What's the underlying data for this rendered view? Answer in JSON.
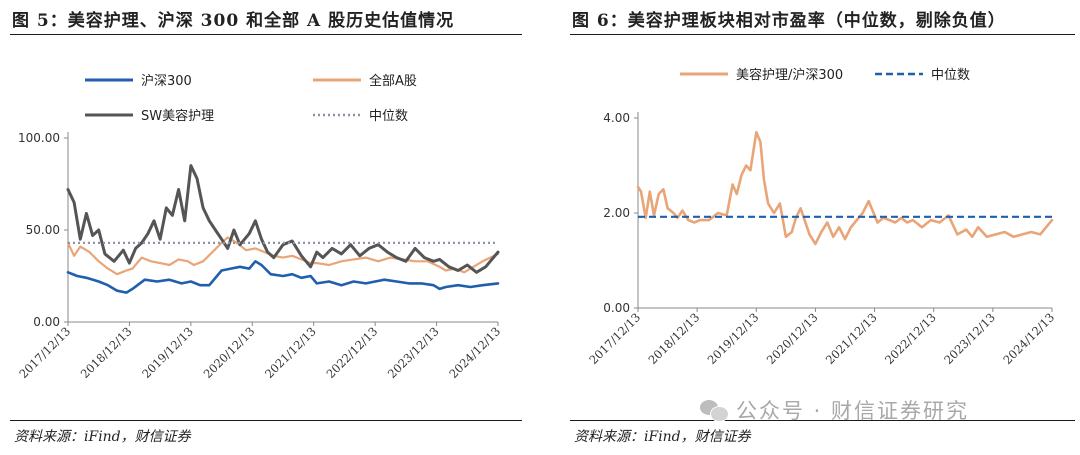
{
  "left": {
    "title": "图 5：美容护理、沪深 300 和全部 A 股历史估值情况",
    "source": "资料来源：iFind，财信证券"
  },
  "right": {
    "title": "图 6：美容护理板块相对市盈率（中位数，剔除负值）",
    "source": "资料来源：iFind，财信证券"
  },
  "watermark": {
    "icon": "wechat-icon",
    "text": "公众号 · 财信证券研究"
  },
  "chart_data": [
    {
      "type": "line",
      "title": "",
      "x_ticks": [
        "2017/12/13",
        "2018/12/13",
        "2019/12/13",
        "2020/12/13",
        "2021/12/13",
        "2022/12/13",
        "2023/12/13",
        "2024/12/13"
      ],
      "x_range": [
        2017.95,
        2024.95
      ],
      "ylim": [
        0,
        100
      ],
      "y_ticks": [
        "0.00",
        "50.00",
        "100.00"
      ],
      "legend": "top, two columns",
      "series": [
        {
          "name": "沪深300",
          "color": "#1f5fae",
          "style": "solid",
          "x": [
            2017.95,
            2018.1,
            2018.25,
            2018.45,
            2018.6,
            2018.75,
            2018.9,
            2019.0,
            2019.2,
            2019.4,
            2019.6,
            2019.8,
            2019.95,
            2020.1,
            2020.25,
            2020.45,
            2020.6,
            2020.75,
            2020.9,
            2021.0,
            2021.1,
            2021.25,
            2021.45,
            2021.6,
            2021.75,
            2021.9,
            2022.0,
            2022.2,
            2022.4,
            2022.6,
            2022.8,
            2022.95,
            2023.1,
            2023.3,
            2023.5,
            2023.7,
            2023.9,
            2024.0,
            2024.1,
            2024.3,
            2024.5,
            2024.7,
            2024.95
          ],
          "y": [
            27,
            25,
            24,
            22,
            20,
            17,
            16,
            18,
            23,
            22,
            23,
            21,
            22,
            20,
            20,
            28,
            29,
            30,
            29,
            33,
            31,
            26,
            25,
            26,
            24,
            25,
            21,
            22,
            20,
            22,
            21,
            22,
            23,
            22,
            21,
            21,
            20,
            18,
            19,
            20,
            19,
            20,
            21
          ]
        },
        {
          "name": "全部A股",
          "color": "#e9a577",
          "style": "solid",
          "x": [
            2017.95,
            2018.05,
            2018.15,
            2018.3,
            2018.45,
            2018.6,
            2018.75,
            2018.9,
            2019.0,
            2019.15,
            2019.3,
            2019.45,
            2019.6,
            2019.75,
            2019.9,
            2020.0,
            2020.15,
            2020.3,
            2020.45,
            2020.55,
            2020.7,
            2020.85,
            2021.0,
            2021.15,
            2021.3,
            2021.45,
            2021.6,
            2021.75,
            2021.9,
            2022.0,
            2022.2,
            2022.4,
            2022.6,
            2022.8,
            2023.0,
            2023.2,
            2023.4,
            2023.6,
            2023.8,
            2024.0,
            2024.1,
            2024.25,
            2024.4,
            2024.55,
            2024.7,
            2024.95
          ],
          "y": [
            43,
            36,
            41,
            38,
            33,
            29,
            26,
            28,
            29,
            35,
            33,
            32,
            31,
            34,
            33,
            31,
            33,
            38,
            43,
            46,
            43,
            39,
            40,
            38,
            36,
            35,
            36,
            34,
            32,
            32,
            31,
            33,
            34,
            35,
            33,
            35,
            34,
            33,
            33,
            30,
            28,
            29,
            27,
            30,
            33,
            37
          ]
        },
        {
          "name": "SW美容护理",
          "color": "#555555",
          "style": "solid",
          "x": [
            2017.95,
            2018.05,
            2018.15,
            2018.25,
            2018.35,
            2018.45,
            2018.55,
            2018.7,
            2018.85,
            2018.95,
            2019.05,
            2019.15,
            2019.25,
            2019.35,
            2019.45,
            2019.55,
            2019.65,
            2019.75,
            2019.85,
            2019.95,
            2020.05,
            2020.15,
            2020.25,
            2020.35,
            2020.45,
            2020.55,
            2020.65,
            2020.75,
            2020.9,
            2021.0,
            2021.1,
            2021.2,
            2021.3,
            2021.45,
            2021.6,
            2021.75,
            2021.9,
            2022.0,
            2022.1,
            2022.25,
            2022.4,
            2022.55,
            2022.7,
            2022.85,
            2023.0,
            2023.15,
            2023.3,
            2023.45,
            2023.6,
            2023.75,
            2023.9,
            2024.0,
            2024.15,
            2024.3,
            2024.45,
            2024.6,
            2024.75,
            2024.95
          ],
          "y": [
            72,
            65,
            45,
            59,
            47,
            50,
            37,
            33,
            39,
            32,
            40,
            43,
            48,
            55,
            45,
            62,
            58,
            72,
            55,
            85,
            78,
            62,
            55,
            50,
            45,
            40,
            50,
            42,
            48,
            55,
            45,
            38,
            35,
            42,
            44,
            36,
            30,
            38,
            35,
            40,
            37,
            42,
            36,
            40,
            42,
            38,
            35,
            33,
            40,
            35,
            33,
            34,
            30,
            28,
            31,
            27,
            30,
            38
          ]
        },
        {
          "name": "中位数",
          "color": "#8a94a6",
          "style": "dotted",
          "x": [
            2017.95,
            2024.95
          ],
          "y": [
            43,
            43
          ]
        }
      ]
    },
    {
      "type": "line",
      "title": "",
      "x_ticks": [
        "2017/12/13",
        "2018/12/13",
        "2019/12/13",
        "2020/12/13",
        "2021/12/13",
        "2022/12/13",
        "2023/12/13",
        "2024/12/13"
      ],
      "x_range": [
        2017.95,
        2024.95
      ],
      "ylim": [
        0,
        4
      ],
      "y_ticks": [
        "0.00",
        "2.00",
        "4.00"
      ],
      "legend": "top, one row",
      "series": [
        {
          "name": "美容护理/沪深300",
          "color": "#e9a577",
          "style": "solid",
          "x": [
            2017.95,
            2018.0,
            2018.08,
            2018.15,
            2018.22,
            2018.3,
            2018.38,
            2018.45,
            2018.55,
            2018.62,
            2018.7,
            2018.8,
            2018.9,
            2019.0,
            2019.15,
            2019.3,
            2019.45,
            2019.55,
            2019.62,
            2019.7,
            2019.78,
            2019.85,
            2019.95,
            2020.02,
            2020.08,
            2020.15,
            2020.25,
            2020.35,
            2020.45,
            2020.55,
            2020.62,
            2020.7,
            2020.85,
            2020.95,
            2021.05,
            2021.15,
            2021.25,
            2021.35,
            2021.45,
            2021.55,
            2021.65,
            2021.75,
            2021.85,
            2022.0,
            2022.1,
            2022.2,
            2022.3,
            2022.4,
            2022.5,
            2022.6,
            2022.75,
            2022.9,
            2023.05,
            2023.2,
            2023.35,
            2023.5,
            2023.6,
            2023.7,
            2023.85,
            2024.0,
            2024.15,
            2024.3,
            2024.45,
            2024.6,
            2024.75,
            2024.95
          ],
          "y": [
            2.55,
            2.45,
            1.9,
            2.45,
            1.95,
            2.4,
            2.5,
            2.1,
            2.0,
            1.9,
            2.05,
            1.85,
            1.8,
            1.85,
            1.85,
            2.0,
            1.95,
            2.6,
            2.4,
            2.8,
            3.0,
            2.9,
            3.7,
            3.5,
            2.7,
            2.2,
            2.0,
            2.2,
            1.5,
            1.6,
            1.9,
            2.1,
            1.55,
            1.35,
            1.6,
            1.8,
            1.5,
            1.7,
            1.45,
            1.7,
            1.85,
            2.0,
            2.25,
            1.8,
            1.9,
            1.85,
            1.8,
            1.9,
            1.8,
            1.85,
            1.7,
            1.85,
            1.8,
            1.95,
            1.55,
            1.65,
            1.5,
            1.7,
            1.5,
            1.55,
            1.6,
            1.5,
            1.55,
            1.6,
            1.55,
            1.85
          ]
        },
        {
          "name": "中位数",
          "color": "#1f5fae",
          "style": "dashed",
          "x": [
            2017.95,
            2024.95
          ],
          "y": [
            1.92,
            1.92
          ]
        }
      ]
    }
  ]
}
